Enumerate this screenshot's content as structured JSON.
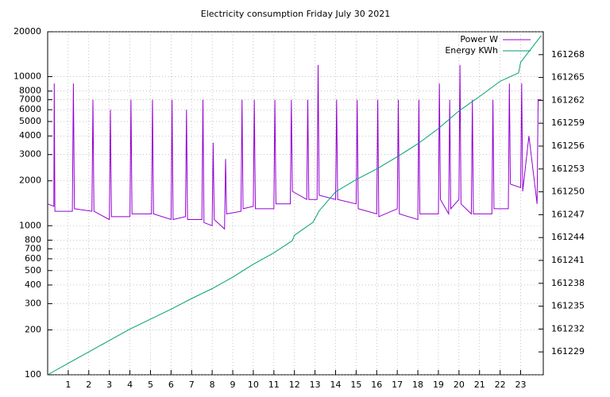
{
  "chart_data": {
    "type": "line",
    "title": "Electricity consumption Friday July 30 2021",
    "log_y": true,
    "grid": true,
    "legend": "top-right",
    "xlim": [
      0,
      24.1
    ],
    "xticks": [
      1,
      2,
      3,
      4,
      5,
      6,
      7,
      8,
      9,
      10,
      11,
      12,
      13,
      14,
      15,
      16,
      17,
      18,
      19,
      20,
      21,
      22,
      23
    ],
    "ylim": [
      100,
      20000
    ],
    "yticks": [
      100,
      200,
      300,
      400,
      500,
      600,
      700,
      800,
      1000,
      2000,
      3000,
      4000,
      5000,
      6000,
      7000,
      8000,
      10000,
      20000
    ],
    "y2lim": [
      161226,
      161271
    ],
    "y2ticks": [
      161229,
      161232,
      161235,
      161238,
      161241,
      161244,
      161247,
      161250,
      161253,
      161256,
      161259,
      161262,
      161265,
      161268
    ],
    "series": [
      {
        "name": "Power W",
        "color": "#9400d3",
        "x": [
          0,
          0.3,
          0.32,
          0.35,
          1.2,
          1.25,
          1.3,
          2.15,
          2.2,
          2.25,
          3.0,
          3.05,
          3.1,
          4.0,
          4.05,
          4.1,
          5.05,
          5.1,
          5.15,
          6.0,
          6.05,
          6.1,
          6.7,
          6.75,
          6.8,
          7.5,
          7.55,
          7.6,
          8.0,
          8.05,
          8.1,
          8.6,
          8.65,
          8.7,
          9.4,
          9.45,
          9.5,
          10.0,
          10.05,
          10.1,
          11.0,
          11.05,
          11.1,
          11.8,
          11.85,
          11.9,
          12.6,
          12.65,
          12.7,
          13.1,
          13.15,
          13.2,
          14.0,
          14.05,
          14.1,
          15.0,
          15.05,
          15.1,
          16.0,
          16.05,
          16.1,
          17.0,
          17.05,
          17.1,
          18.0,
          18.05,
          18.1,
          19.0,
          19.05,
          19.1,
          19.5,
          19.55,
          19.6,
          20.0,
          20.05,
          20.1,
          20.6,
          20.65,
          20.7,
          21.6,
          21.65,
          21.7,
          22.4,
          22.45,
          22.5,
          23.0,
          23.05,
          23.1,
          23.4,
          23.8,
          23.85,
          24.0
        ],
        "values": [
          1400,
          1350,
          9000,
          1250,
          1250,
          9000,
          1300,
          1250,
          7000,
          1250,
          1100,
          6000,
          1150,
          1150,
          7000,
          1200,
          1200,
          7000,
          1200,
          1100,
          7000,
          1100,
          1150,
          6000,
          1100,
          1100,
          7000,
          1050,
          1000,
          3600,
          1100,
          950,
          2800,
          1200,
          1250,
          7000,
          1300,
          1350,
          7000,
          1300,
          1300,
          7000,
          1400,
          1400,
          7000,
          1700,
          1500,
          7000,
          1500,
          1500,
          12000,
          1600,
          1500,
          7000,
          1500,
          1400,
          7000,
          1300,
          1200,
          7000,
          1150,
          1300,
          7000,
          1200,
          1100,
          7000,
          1200,
          1200,
          9000,
          1500,
          1200,
          7000,
          1300,
          1500,
          12000,
          1400,
          1200,
          7000,
          1200,
          1200,
          7000,
          1300,
          1300,
          9000,
          1900,
          1800,
          9000,
          1700,
          4000,
          1400,
          7000,
          7000
        ]
      },
      {
        "name": "Energy KWh",
        "color": "#009e73",
        "axis": "y2",
        "x": [
          0,
          1,
          2,
          3,
          4,
          5,
          6,
          7,
          8,
          9,
          10,
          11,
          11.9,
          12,
          12.9,
          13.2,
          14,
          15,
          16,
          17,
          18,
          19,
          20,
          21,
          22,
          22.9,
          23,
          24
        ],
        "values": [
          161226,
          161227.5,
          161229,
          161230.5,
          161232,
          161233.3,
          161234.6,
          161236,
          161237.3,
          161238.8,
          161240.5,
          161242,
          161243.6,
          161244.3,
          161246,
          161247.5,
          161250,
          161251.6,
          161253,
          161254.6,
          161256.3,
          161258.3,
          161260.6,
          161262.5,
          161264.5,
          161265.6,
          161267,
          161270.5
        ]
      }
    ]
  }
}
